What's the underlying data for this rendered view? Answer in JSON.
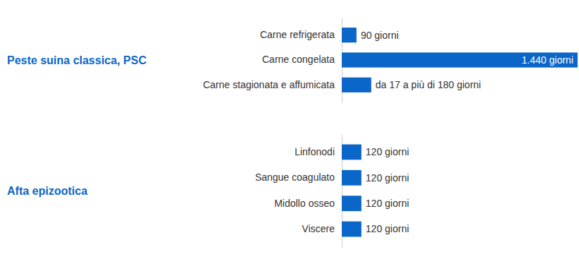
{
  "chart_data": [
    {
      "type": "bar",
      "title": "Peste suina classica, PSC",
      "orientation": "horizontal",
      "categories": [
        "Carne refrigerata",
        "Carne congelata",
        "Carne stagionata e affumicata"
      ],
      "values": [
        90,
        1440,
        180
      ],
      "value_labels": [
        "90 giorni",
        "1.440 giorni",
        "da 17 a più di 180 giorni"
      ],
      "color": "#0a66c9",
      "xlim": [
        0,
        1440
      ],
      "data_labels": true,
      "tick_labels": "y",
      "grid": false
    },
    {
      "type": "bar",
      "title": "Afta epizootica",
      "orientation": "horizontal",
      "categories": [
        "Linfonodi",
        "Sangue coagulato",
        "Midollo osseo",
        "Viscere"
      ],
      "values": [
        120,
        120,
        120,
        120
      ],
      "value_labels": [
        "120 giorni",
        "120 giorni",
        "120 giorni",
        "120 giorni"
      ],
      "color": "#0a66c9",
      "xlim": [
        0,
        1440
      ],
      "data_labels": true,
      "tick_labels": "y",
      "grid": false
    }
  ]
}
